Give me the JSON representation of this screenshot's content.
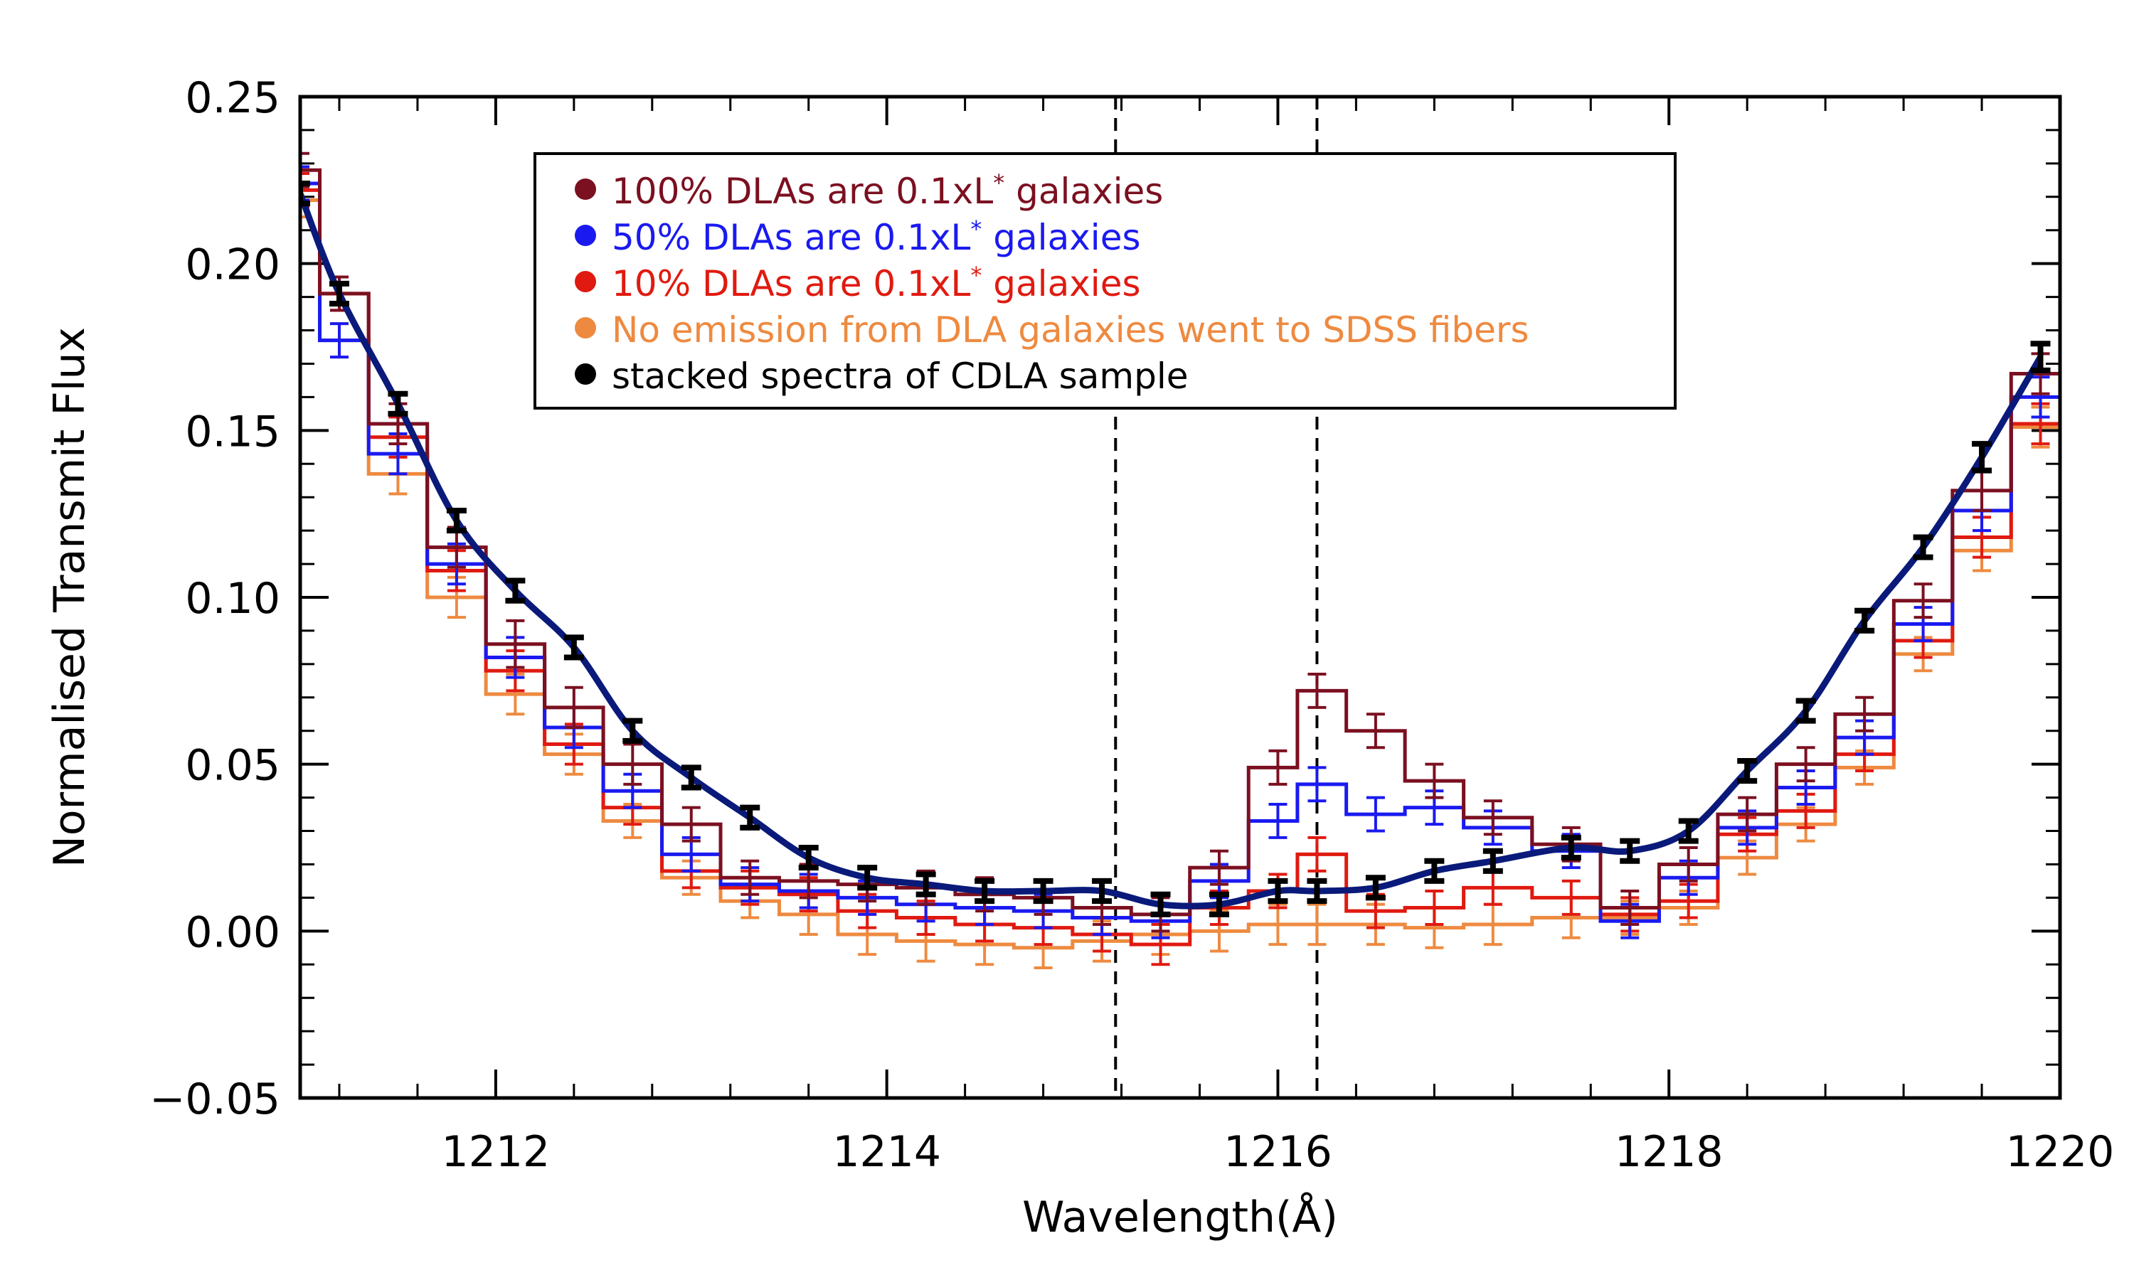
{
  "chart_data": {
    "type": "line",
    "title": "",
    "xlabel": "Wavelength(Å)",
    "ylabel": "Normalised Transmit Flux",
    "xlim": [
      1211.0,
      1220.0
    ],
    "ylim": [
      -0.05,
      0.25
    ],
    "x_ticks": [
      1212,
      1214,
      1216,
      1218,
      1220
    ],
    "x_tick_labels": [
      "1212",
      "1214",
      "1216",
      "1218",
      "1220"
    ],
    "y_ticks": [
      -0.05,
      0.0,
      0.05,
      0.1,
      0.15,
      0.2,
      0.25
    ],
    "y_tick_labels": [
      "−0.05",
      "0.00",
      "0.05",
      "0.10",
      "0.15",
      "0.20",
      "0.25"
    ],
    "vlines": [
      1215.17,
      1216.2
    ],
    "x": [
      1211.0,
      1211.2,
      1211.5,
      1211.8,
      1212.1,
      1212.4,
      1212.7,
      1213.0,
      1213.3,
      1213.6,
      1213.9,
      1214.2,
      1214.5,
      1214.8,
      1215.1,
      1215.4,
      1215.7,
      1216.0,
      1216.2,
      1216.5,
      1216.8,
      1217.1,
      1217.5,
      1217.8,
      1218.1,
      1218.4,
      1218.7,
      1219.0,
      1219.3,
      1219.6,
      1219.9
    ],
    "series": [
      {
        "name": "100%",
        "label": "100% DLAs are 0.1xL* galaxies",
        "legend_prefix": "100% DLAs are 0.1xL",
        "legend_suffix": " galaxies",
        "style": "step",
        "color": "#7b1020",
        "values": [
          0.228,
          0.191,
          0.152,
          0.115,
          0.086,
          0.067,
          0.05,
          0.032,
          0.016,
          0.015,
          0.014,
          0.013,
          0.011,
          0.01,
          0.007,
          0.005,
          0.019,
          0.049,
          0.072,
          0.06,
          0.045,
          0.034,
          0.026,
          0.007,
          0.02,
          0.035,
          0.05,
          0.065,
          0.099,
          0.132,
          0.167
        ],
        "errors": [
          0.005,
          0.005,
          0.006,
          0.006,
          0.007,
          0.006,
          0.006,
          0.005,
          0.005,
          0.005,
          0.005,
          0.005,
          0.005,
          0.005,
          0.005,
          0.005,
          0.005,
          0.005,
          0.005,
          0.005,
          0.005,
          0.005,
          0.005,
          0.005,
          0.005,
          0.005,
          0.005,
          0.005,
          0.005,
          0.006,
          0.006
        ]
      },
      {
        "name": "50%",
        "label": "50% DLAs are 0.1xL* galaxies",
        "legend_prefix": "50% DLAs are 0.1xL",
        "legend_suffix": " galaxies",
        "style": "step",
        "color": "#1a1af0",
        "values": [
          0.224,
          0.177,
          0.143,
          0.11,
          0.082,
          0.061,
          0.042,
          0.023,
          0.014,
          0.012,
          0.01,
          0.008,
          0.007,
          0.006,
          0.004,
          0.003,
          0.015,
          0.033,
          0.044,
          0.035,
          0.037,
          0.031,
          0.024,
          0.003,
          0.016,
          0.031,
          0.043,
          0.058,
          0.092,
          0.126,
          0.16
        ],
        "errors": [
          0.005,
          0.005,
          0.006,
          0.006,
          0.006,
          0.006,
          0.005,
          0.005,
          0.005,
          0.005,
          0.005,
          0.005,
          0.005,
          0.005,
          0.005,
          0.005,
          0.005,
          0.005,
          0.005,
          0.005,
          0.005,
          0.005,
          0.005,
          0.005,
          0.005,
          0.005,
          0.005,
          0.005,
          0.005,
          0.006,
          0.006
        ]
      },
      {
        "name": "10%",
        "label": "10% DLAs are 0.1xL* galaxies",
        "legend_prefix": "10% DLAs are 0.1xL",
        "legend_suffix": " galaxies",
        "style": "step",
        "color": "#e01a10",
        "values": [
          0.222,
          0.191,
          0.148,
          0.108,
          0.078,
          0.056,
          0.037,
          0.018,
          0.013,
          0.011,
          0.006,
          0.004,
          0.002,
          0.001,
          -0.001,
          -0.004,
          0.007,
          0.012,
          0.023,
          0.006,
          0.007,
          0.013,
          0.01,
          0.005,
          0.009,
          0.029,
          0.036,
          0.053,
          0.087,
          0.118,
          0.152
        ],
        "errors": [
          0.005,
          0.005,
          0.006,
          0.006,
          0.006,
          0.006,
          0.005,
          0.005,
          0.005,
          0.005,
          0.005,
          0.005,
          0.005,
          0.005,
          0.005,
          0.006,
          0.005,
          0.005,
          0.005,
          0.005,
          0.005,
          0.005,
          0.005,
          0.005,
          0.005,
          0.005,
          0.005,
          0.005,
          0.005,
          0.006,
          0.006
        ]
      },
      {
        "name": "none",
        "label": "No emission from DLA galaxies went to SDSS fibers",
        "legend_prefix": "No emission from DLA galaxies went to SDSS fibers",
        "legend_suffix": "",
        "style": "step",
        "color": "#ee8a40",
        "values": [
          0.219,
          0.177,
          0.137,
          0.1,
          0.071,
          0.053,
          0.033,
          0.016,
          0.009,
          0.005,
          -0.001,
          -0.003,
          -0.004,
          -0.005,
          -0.003,
          -0.001,
          0.0,
          0.002,
          0.002,
          0.002,
          0.001,
          0.002,
          0.004,
          0.004,
          0.007,
          0.022,
          0.032,
          0.049,
          0.083,
          0.114,
          0.151
        ],
        "errors": [
          0.005,
          0.005,
          0.006,
          0.006,
          0.006,
          0.006,
          0.005,
          0.005,
          0.005,
          0.006,
          0.006,
          0.006,
          0.006,
          0.006,
          0.006,
          0.006,
          0.006,
          0.006,
          0.006,
          0.006,
          0.006,
          0.006,
          0.006,
          0.005,
          0.005,
          0.005,
          0.005,
          0.005,
          0.005,
          0.006,
          0.006
        ]
      },
      {
        "name": "stacked",
        "label": "stacked spectra of CDLA sample",
        "legend_prefix": "stacked spectra of CDLA sample",
        "legend_suffix": "",
        "style": "line",
        "color": "#000000",
        "line_color": "#0a1a7a",
        "values": [
          0.221,
          0.191,
          0.158,
          0.123,
          0.102,
          0.085,
          0.06,
          0.046,
          0.034,
          0.022,
          0.016,
          0.014,
          0.012,
          0.012,
          0.012,
          0.008,
          0.008,
          0.012,
          0.012,
          0.013,
          0.018,
          0.021,
          0.025,
          0.024,
          0.03,
          0.048,
          0.066,
          0.093,
          0.115,
          0.142,
          0.172
        ],
        "errors": [
          0.003,
          0.003,
          0.003,
          0.003,
          0.003,
          0.003,
          0.003,
          0.003,
          0.003,
          0.003,
          0.003,
          0.003,
          0.003,
          0.003,
          0.003,
          0.003,
          0.003,
          0.003,
          0.003,
          0.003,
          0.003,
          0.003,
          0.003,
          0.003,
          0.003,
          0.003,
          0.003,
          0.003,
          0.003,
          0.004,
          0.004
        ]
      }
    ]
  }
}
